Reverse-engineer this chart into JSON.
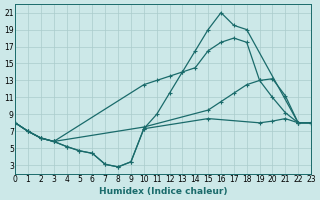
{
  "xlabel": "Humidex (Indice chaleur)",
  "bg_color": "#cce8e8",
  "line_color": "#1a6b6b",
  "grid_color": "#aacccc",
  "xlim": [
    0,
    23
  ],
  "ylim": [
    2,
    22
  ],
  "xticks": [
    0,
    1,
    2,
    3,
    4,
    5,
    6,
    7,
    8,
    9,
    10,
    11,
    12,
    13,
    14,
    15,
    16,
    17,
    18,
    19,
    20,
    21,
    22,
    23
  ],
  "yticks": [
    3,
    5,
    7,
    9,
    11,
    13,
    15,
    17,
    19,
    21
  ],
  "curves": [
    {
      "x": [
        0,
        1,
        2,
        3,
        4,
        5,
        6,
        7,
        8,
        9,
        10,
        11,
        12,
        13,
        14,
        15,
        16,
        17,
        18,
        22,
        23
      ],
      "y": [
        8.0,
        7.0,
        6.2,
        5.8,
        5.2,
        4.7,
        4.4,
        3.1,
        2.8,
        3.4,
        7.3,
        9.0,
        11.5,
        14.0,
        16.5,
        19.0,
        21.0,
        19.5,
        19.0,
        8.0,
        8.0
      ]
    },
    {
      "x": [
        0,
        1,
        2,
        3,
        10,
        11,
        12,
        13,
        14,
        15,
        16,
        17,
        18,
        19,
        20,
        21,
        22,
        23
      ],
      "y": [
        8.0,
        7.0,
        6.2,
        5.8,
        12.5,
        13.0,
        13.5,
        14.0,
        14.5,
        16.5,
        17.5,
        18.0,
        17.5,
        13.0,
        11.0,
        9.2,
        8.0,
        8.0
      ]
    },
    {
      "x": [
        0,
        1,
        2,
        3,
        10,
        15,
        16,
        17,
        18,
        19,
        20,
        21,
        22,
        23
      ],
      "y": [
        8.0,
        7.0,
        6.2,
        5.8,
        7.5,
        9.5,
        10.5,
        11.5,
        12.5,
        13.0,
        13.2,
        11.2,
        8.0,
        8.0
      ]
    },
    {
      "x": [
        0,
        1,
        2,
        3,
        4,
        5,
        6,
        7,
        8,
        9,
        10,
        15,
        19,
        20,
        21,
        22,
        23
      ],
      "y": [
        8.0,
        7.0,
        6.2,
        5.8,
        5.2,
        4.7,
        4.4,
        3.1,
        2.8,
        3.4,
        7.3,
        8.5,
        8.0,
        8.2,
        8.5,
        8.0,
        8.0
      ]
    }
  ]
}
